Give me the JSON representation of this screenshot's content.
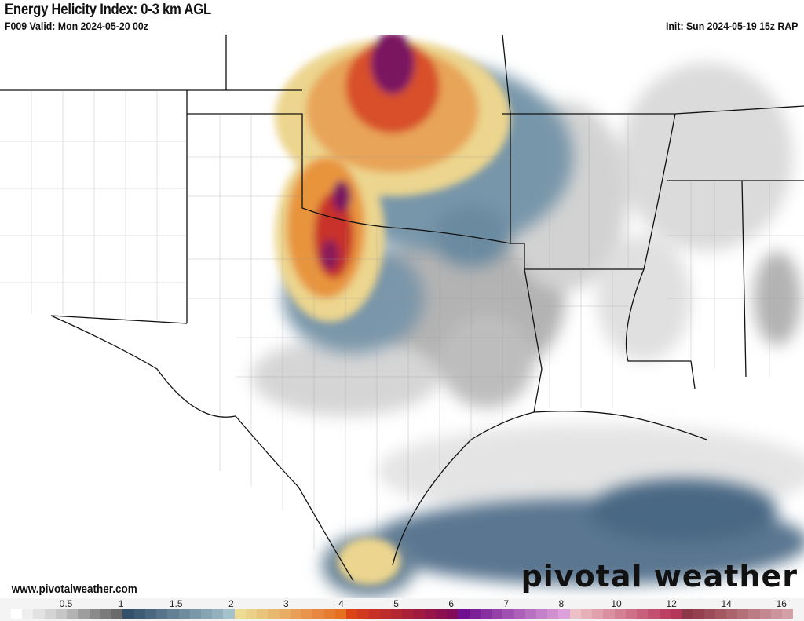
{
  "header": {
    "title": "Energy Helicity Index: 0-3 km AGL",
    "valid": "F009 Valid: Mon 2024-05-20 00z",
    "init": "Init: Sun 2024-05-19 15z RAP"
  },
  "footer": {
    "website": "www.pivotalweather.com",
    "logo": "pivotal weather"
  },
  "colorbar": {
    "ticks": [
      "0.5",
      "1",
      "1.5",
      "2",
      "3",
      "4",
      "5",
      "6",
      "7",
      "8",
      "10",
      "12",
      "14",
      "16"
    ],
    "colors": [
      "#ffffff",
      "#eeeeee",
      "#e2e2e2",
      "#d4d4d4",
      "#c6c6c6",
      "#b3b3b3",
      "#9e9e9e",
      "#8b8b8b",
      "#7a7a7a",
      "#6a6a6a",
      "#34506a",
      "#3f5c75",
      "#4b6880",
      "#57748a",
      "#638094",
      "#6f8c9e",
      "#7b98a8",
      "#87a4b2",
      "#93b0bc",
      "#a3c2cc",
      "#ecdc94",
      "#ead088",
      "#e8c47c",
      "#e8b870",
      "#e8ac64",
      "#e8a058",
      "#e8944c",
      "#e88840",
      "#e67c30",
      "#e47020",
      "#dc4418",
      "#d23a20",
      "#c83226",
      "#be2c2c",
      "#b42632",
      "#aa2038",
      "#a01a40",
      "#961448",
      "#8c1050",
      "#820c58",
      "#701090",
      "#7c2098",
      "#8830a0",
      "#9440a8",
      "#a050b0",
      "#ac60b8",
      "#b870c0",
      "#c480c8",
      "#d090d0",
      "#dca0dc",
      "#ecc0c4",
      "#e6b0b8",
      "#e0a0ac",
      "#da90a0",
      "#d48094",
      "#ce7088",
      "#c8607c",
      "#c25070",
      "#bc4064",
      "#b43658",
      "#8c3848",
      "#94404e",
      "#9c4c58",
      "#a45862",
      "#ac646c",
      "#b47078",
      "#bc7c84",
      "#c48890",
      "#cc949c",
      "#d4a0a8"
    ]
  },
  "map": {
    "shading_colors": {
      "gray": "#8e8e8e",
      "blue": "#4d6b86",
      "yellow": "#ecd58e",
      "orange": "#e8943c",
      "red": "#c8322a",
      "purple": "#7a1660"
    }
  }
}
